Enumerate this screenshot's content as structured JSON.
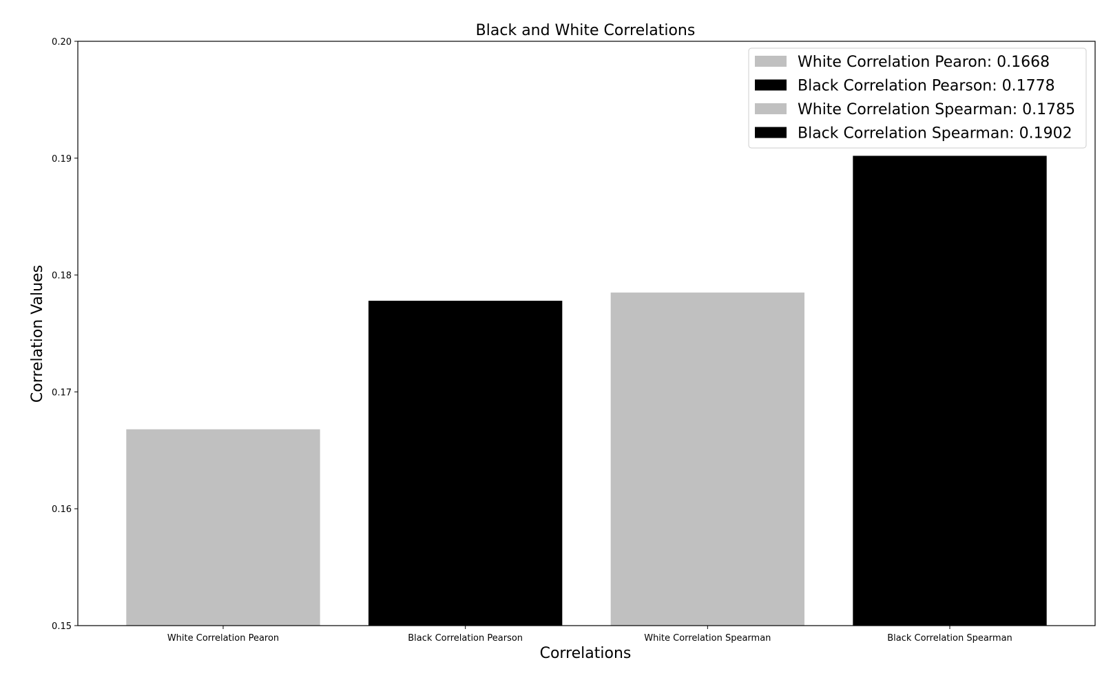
{
  "chart_data": {
    "type": "bar",
    "title": "Black and White Correlations",
    "xlabel": "Correlations",
    "ylabel": "Correlation Values",
    "categories": [
      "White Correlation Pearon",
      "Black Correlation Pearson",
      "White Correlation Spearman",
      "Black Correlation Spearman"
    ],
    "values": [
      0.1668,
      0.1778,
      0.1785,
      0.1902
    ],
    "colors": [
      "#c0c0c0",
      "#000000",
      "#c0c0c0",
      "#000000"
    ],
    "ylim": [
      0.15,
      0.2
    ],
    "yticks": [
      "0.15",
      "0.16",
      "0.17",
      "0.18",
      "0.19",
      "0.20"
    ],
    "grid": false,
    "legend": {
      "placement": "top-right",
      "entries": [
        {
          "label": "White Correlation Pearon: 0.1668",
          "color": "#c0c0c0"
        },
        {
          "label": "Black Correlation Pearson: 0.1778",
          "color": "#000000"
        },
        {
          "label": "White Correlation Spearman: 0.1785",
          "color": "#c0c0c0"
        },
        {
          "label": "Black Correlation Spearman: 0.1902",
          "color": "#000000"
        }
      ]
    }
  }
}
